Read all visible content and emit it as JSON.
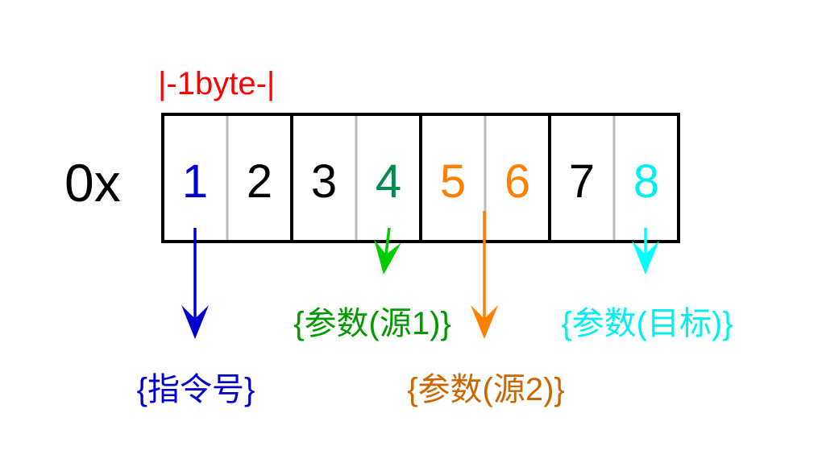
{
  "prefix": "0x",
  "byte_label": "|-1byte-|",
  "digits": [
    {
      "text": "1",
      "color": "#0000cc"
    },
    {
      "text": "2",
      "color": "#000000"
    },
    {
      "text": "3",
      "color": "#000000"
    },
    {
      "text": "4",
      "color": "#008a4e"
    },
    {
      "text": "5",
      "color": "#ff8000"
    },
    {
      "text": "6",
      "color": "#ff8000"
    },
    {
      "text": "7",
      "color": "#000000"
    },
    {
      "text": "8",
      "color": "#00f0f0"
    }
  ],
  "labels": {
    "opcode": {
      "text": "{指令号}",
      "color": "#0000cc"
    },
    "source1": {
      "text": "{参数(源1)}",
      "color": "#009900"
    },
    "source2": {
      "text": "{参数(源2)}",
      "color": "#cc6600"
    },
    "target": {
      "text": "{参数(目标)}",
      "color": "#00f0f0"
    }
  },
  "colors": {
    "byte_label": "#ff0000",
    "arrow_opcode": "#0000cc",
    "arrow_source1": "#00cc00",
    "arrow_source2": "#ff8000",
    "arrow_target": "#00ffff",
    "byte_divider": "#000000",
    "nibble_divider": "#bbbbbb"
  }
}
